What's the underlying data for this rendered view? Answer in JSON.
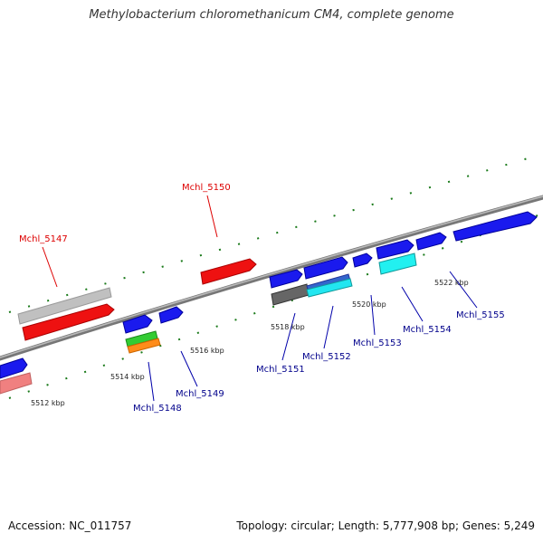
{
  "title": "Methylobacterium chloromethanicum CM4, complete genome",
  "footer": {
    "accession": "Accession: NC_011757",
    "summary": "Topology: circular; Length: 5,777,908 bp; Genes: 5,249"
  },
  "colors": {
    "backbone": "#7a7a7a",
    "tick": "#1a7a1a",
    "label_forward": "#dd0000",
    "label_reverse": "#00008b",
    "leader": "#0000aa"
  },
  "ticks": [
    {
      "label": "5512 kbp"
    },
    {
      "label": "5514 kbp"
    },
    {
      "label": "5516 kbp"
    },
    {
      "label": "5518 kbp"
    },
    {
      "label": "5520 kbp"
    },
    {
      "label": "5522 kbp"
    }
  ],
  "genes": [
    {
      "label": "Mchl_5147"
    },
    {
      "label": "Mchl_5148"
    },
    {
      "label": "Mchl_5149"
    },
    {
      "label": "Mchl_5150"
    },
    {
      "label": "Mchl_5151"
    },
    {
      "label": "Mchl_5152"
    },
    {
      "label": "Mchl_5153"
    },
    {
      "label": "Mchl_5154"
    },
    {
      "label": "Mchl_5155"
    }
  ]
}
